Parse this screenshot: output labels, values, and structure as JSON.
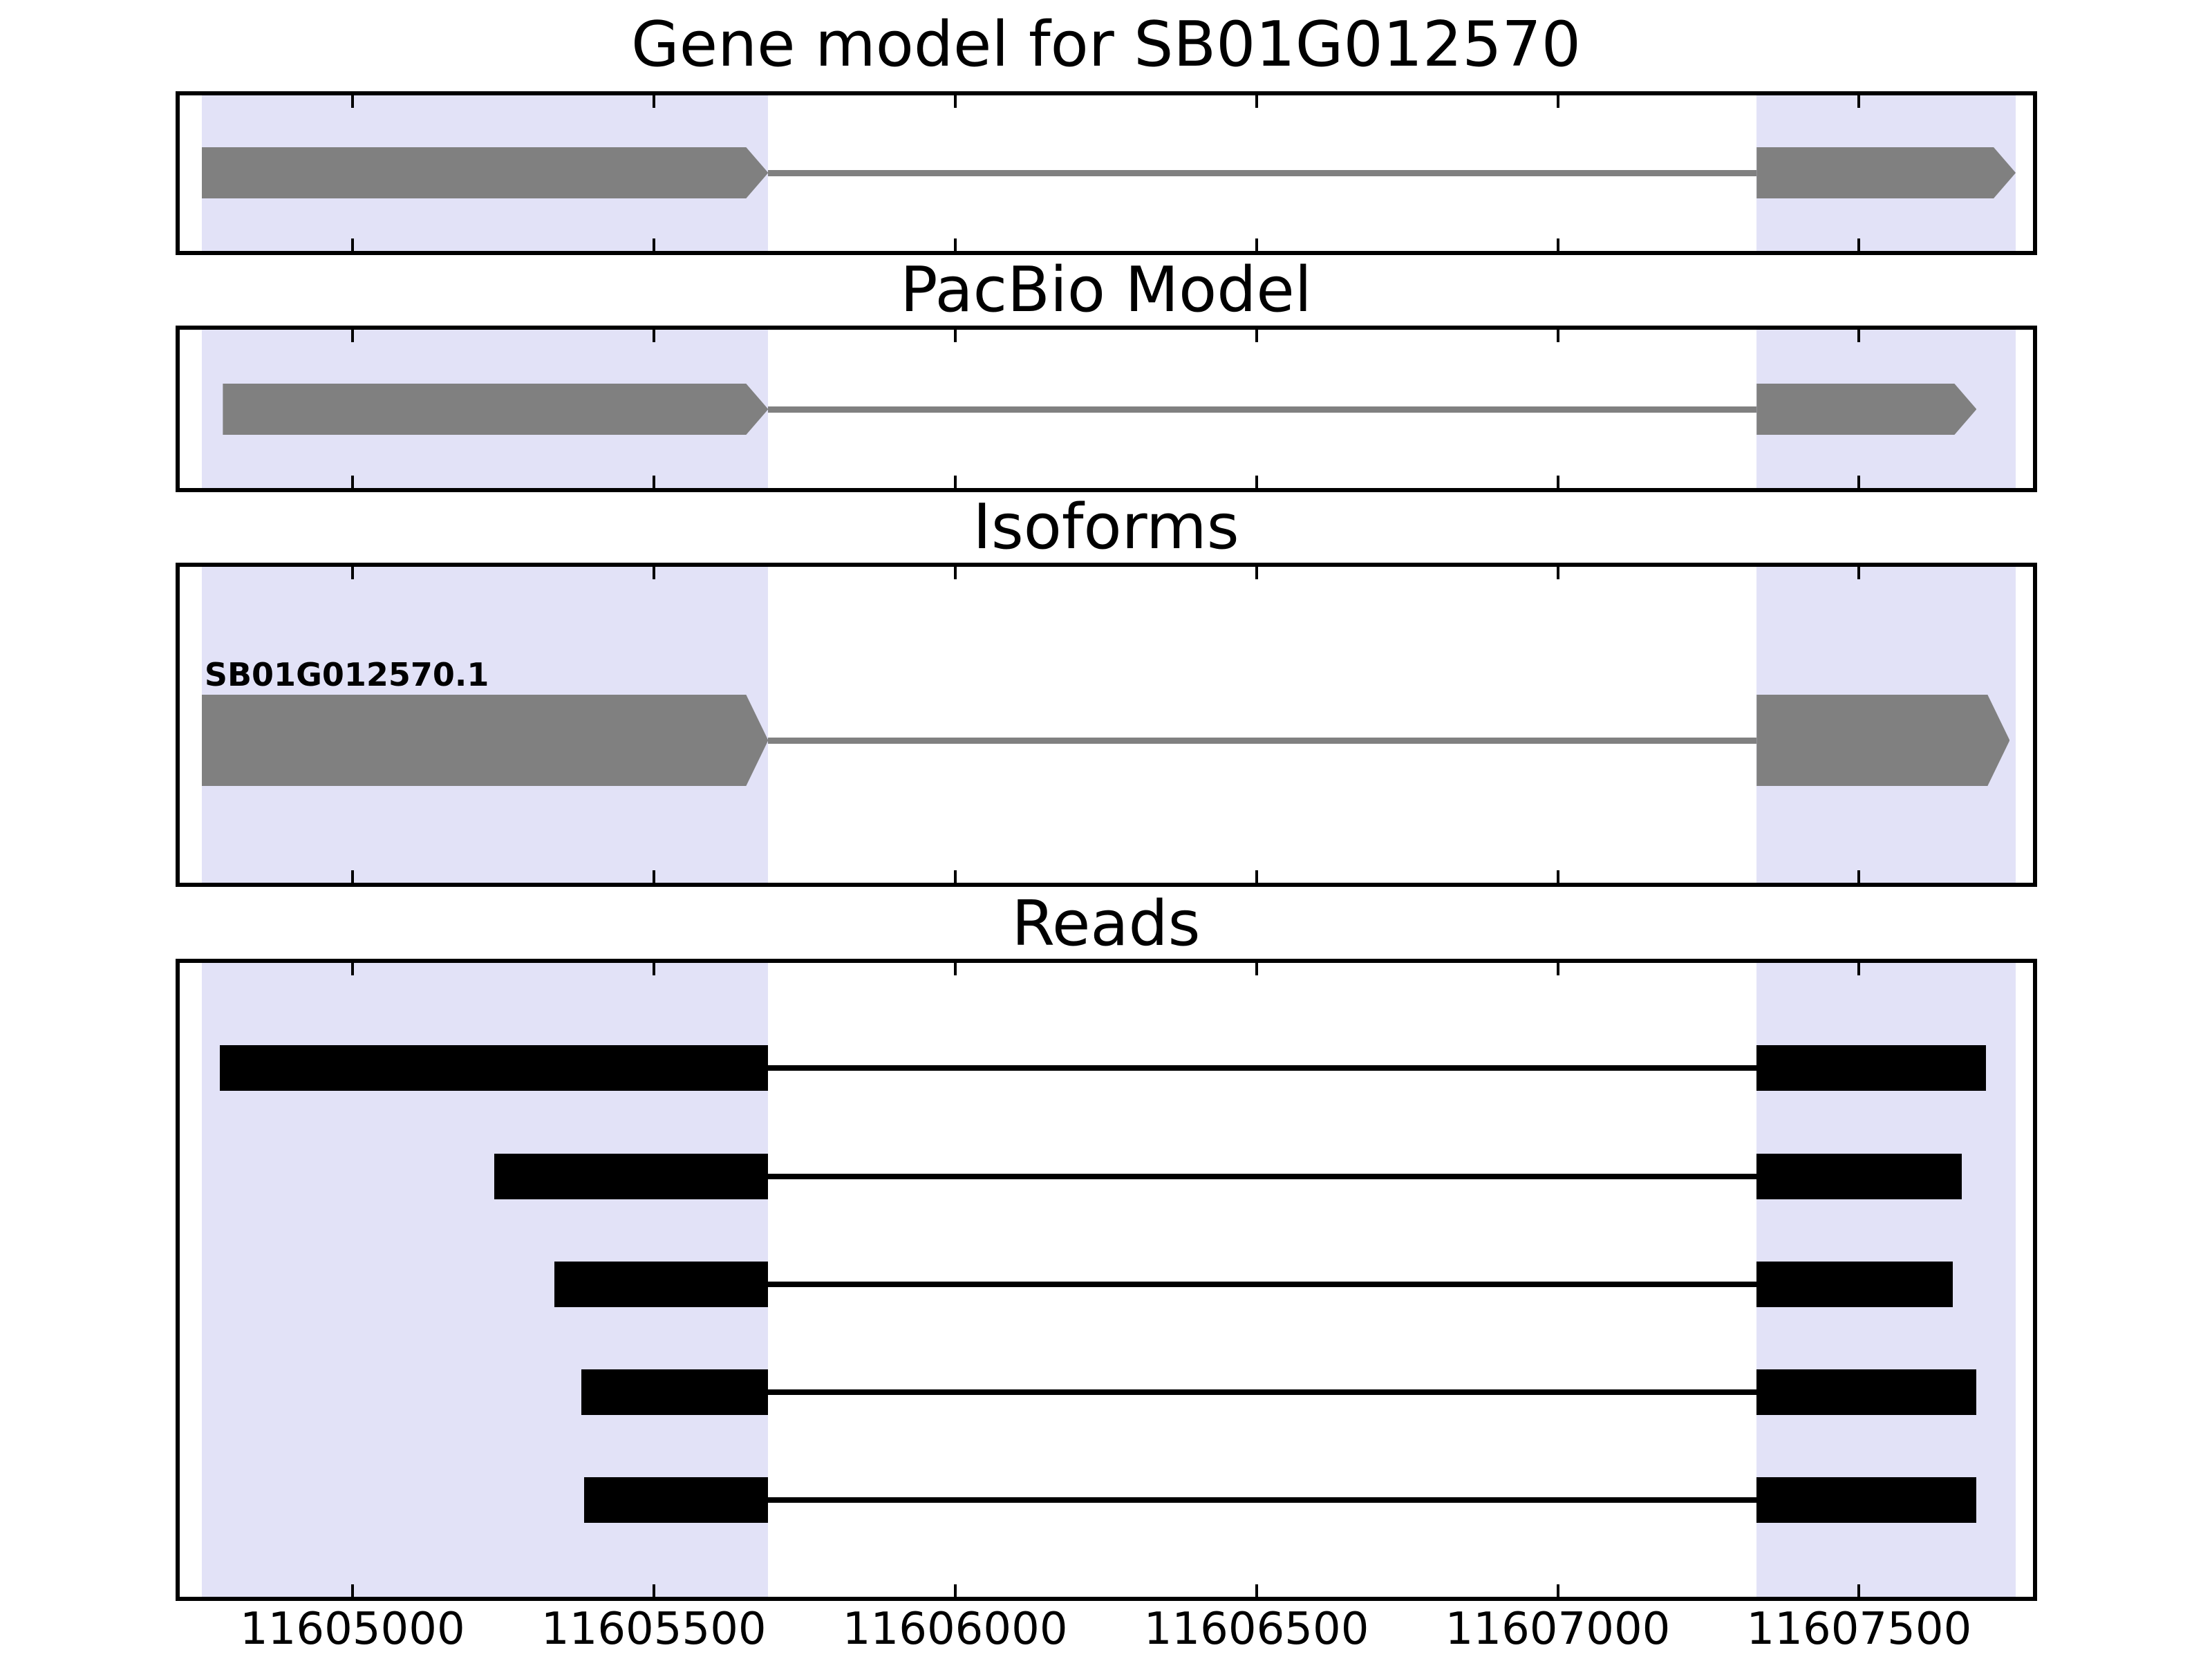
{
  "figure": {
    "background": "#ffffff",
    "colors": {
      "highlight": "#e2e2f7",
      "gene_model_fill": "#808080",
      "gene_intron_line": "#808080",
      "read_fill": "#000000",
      "read_intron_line": "#000000",
      "panel_border": "#000000",
      "tick": "#000000",
      "text": "#000000"
    },
    "axis": {
      "xmin": 11604710,
      "xmax": 11607792,
      "tick_positions": [
        11605000,
        11605500,
        11606000,
        11606500,
        11607000,
        11607500
      ],
      "tick_labels": [
        "11605000",
        "11605500",
        "11606000",
        "11606500",
        "11607000",
        "11607500"
      ]
    },
    "highlight_regions": [
      {
        "start": 11604750,
        "end": 11605690
      },
      {
        "start": 11607330,
        "end": 11607760
      }
    ]
  },
  "panels": [
    {
      "name": "gene-model",
      "title": "Gene model for SB01G012570",
      "features": [
        {
          "type": "transcript",
          "color": "#808080",
          "blocks": [
            {
              "start": 11604750,
              "end": 11605690,
              "arrow": true
            },
            {
              "start": 11607330,
              "end": 11607760,
              "arrow": true
            }
          ]
        }
      ]
    },
    {
      "name": "pacbio-model",
      "title": "PacBio Model",
      "features": [
        {
          "type": "transcript",
          "color": "#808080",
          "blocks": [
            {
              "start": 11604785,
              "end": 11605690,
              "arrow": true
            },
            {
              "start": 11607330,
              "end": 11607695,
              "arrow": true
            }
          ]
        }
      ]
    },
    {
      "name": "isoforms",
      "title": "Isoforms",
      "features": [
        {
          "type": "transcript",
          "label": "SB01G012570.1",
          "color": "#808080",
          "blocks": [
            {
              "start": 11604750,
              "end": 11605690,
              "arrow": true
            },
            {
              "start": 11607330,
              "end": 11607750,
              "arrow": true
            }
          ]
        }
      ]
    },
    {
      "name": "reads",
      "title": "Reads",
      "features": [
        {
          "type": "read",
          "color": "#000000",
          "blocks": [
            {
              "start": 11604780,
              "end": 11605690
            },
            {
              "start": 11607330,
              "end": 11607710
            }
          ]
        },
        {
          "type": "read",
          "color": "#000000",
          "blocks": [
            {
              "start": 11605235,
              "end": 11605690
            },
            {
              "start": 11607330,
              "end": 11607670
            }
          ]
        },
        {
          "type": "read",
          "color": "#000000",
          "blocks": [
            {
              "start": 11605335,
              "end": 11605690
            },
            {
              "start": 11607330,
              "end": 11607655
            }
          ]
        },
        {
          "type": "read",
          "color": "#000000",
          "blocks": [
            {
              "start": 11605380,
              "end": 11605690
            },
            {
              "start": 11607330,
              "end": 11607695
            }
          ]
        },
        {
          "type": "read",
          "color": "#000000",
          "blocks": [
            {
              "start": 11605385,
              "end": 11605690
            },
            {
              "start": 11607330,
              "end": 11607695
            }
          ]
        }
      ]
    }
  ],
  "chart_data": {
    "type": "genomic-feature-tracks",
    "title": "Gene model for SB01G012570",
    "xlim": [
      11604710,
      11607792
    ],
    "x_ticks": [
      11605000,
      11605500,
      11606000,
      11606500,
      11607000,
      11607500
    ],
    "grid": false,
    "legend": "none",
    "highlighted_regions": [
      [
        11604750,
        11605690
      ],
      [
        11607330,
        11607760
      ]
    ],
    "tracks": [
      {
        "title": "Gene model for SB01G012570",
        "features": [
          {
            "name": "SB01G012570",
            "strand": "+",
            "style": "arrowed-exons",
            "exons": [
              [
                11604750,
                11605690
              ],
              [
                11607330,
                11607760
              ]
            ]
          }
        ]
      },
      {
        "title": "PacBio Model",
        "features": [
          {
            "strand": "+",
            "style": "arrowed-exons",
            "exons": [
              [
                11604785,
                11605690
              ],
              [
                11607330,
                11607695
              ]
            ]
          }
        ]
      },
      {
        "title": "Isoforms",
        "features": [
          {
            "name": "SB01G012570.1",
            "strand": "+",
            "style": "arrowed-exons",
            "exons": [
              [
                11604750,
                11605690
              ],
              [
                11607330,
                11607750
              ]
            ]
          }
        ]
      },
      {
        "title": "Reads",
        "features": [
          {
            "style": "aligned-read",
            "exons": [
              [
                11604780,
                11605690
              ],
              [
                11607330,
                11607710
              ]
            ]
          },
          {
            "style": "aligned-read",
            "exons": [
              [
                11605235,
                11605690
              ],
              [
                11607330,
                11607670
              ]
            ]
          },
          {
            "style": "aligned-read",
            "exons": [
              [
                11605335,
                11605690
              ],
              [
                11607330,
                11607655
              ]
            ]
          },
          {
            "style": "aligned-read",
            "exons": [
              [
                11605380,
                11605690
              ],
              [
                11607330,
                11607695
              ]
            ]
          },
          {
            "style": "aligned-read",
            "exons": [
              [
                11605385,
                11605690
              ],
              [
                11607330,
                11607695
              ]
            ]
          }
        ]
      }
    ]
  }
}
